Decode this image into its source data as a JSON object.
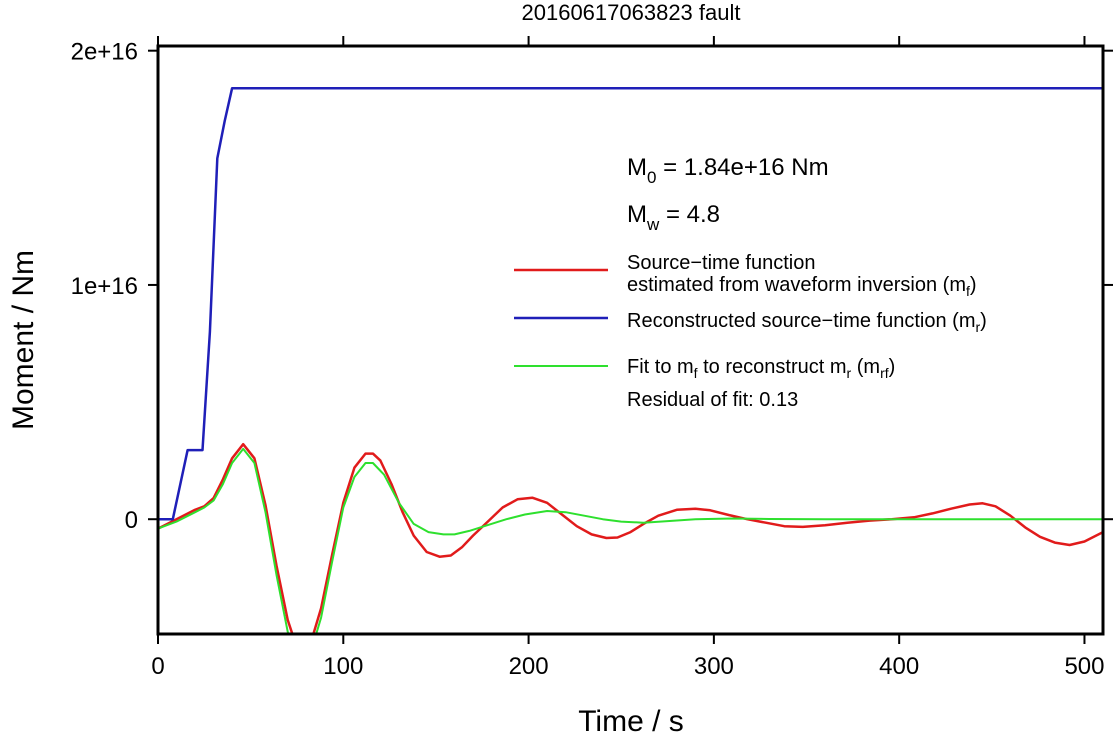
{
  "chart_data": {
    "type": "line",
    "title": "20160617063823 fault",
    "xlabel": "Time / s",
    "ylabel": "Moment / Nm",
    "xlim": [
      0,
      510
    ],
    "ylim": [
      -4900000000000000.0,
      2.02e+16
    ],
    "x_ticks": [
      0,
      100,
      200,
      300,
      400,
      500
    ],
    "x_tick_labels": [
      "0",
      "100",
      "200",
      "300",
      "400",
      "500"
    ],
    "y_ticks": [
      0,
      1e+16,
      2e+16
    ],
    "y_tick_labels": [
      "0",
      "1e+16",
      "2e+16"
    ],
    "grid": false,
    "legend_position": "right-center",
    "annotations": {
      "m0": {
        "sym": "M",
        "sub": "0",
        "rest": " = 1.84e+16 Nm"
      },
      "mw": {
        "sym": "M",
        "sub": "w",
        "rest": " = 4.8"
      },
      "residual": "Residual of fit: 0.13"
    },
    "legend": [
      {
        "series": "mf",
        "line1": "Source−time function",
        "line2_pre": "estimated from waveform inversion (m",
        "line2_sub": "f",
        "line2_post": ")"
      },
      {
        "series": "mr",
        "line1_pre": "Reconstructed source−time function (m",
        "line1_sub": "r",
        "line1_post": ")"
      },
      {
        "series": "mrf",
        "line1_pre": "Fit to m",
        "line1_sub": "f",
        "line1_mid": " to reconstruct m",
        "line1_sub2": "r",
        "line1_mid2": " (m",
        "line1_sub3": "rf",
        "line1_post": ")"
      }
    ],
    "series": [
      {
        "key": "mf",
        "color": "#e11b1b",
        "x": [
          0,
          10,
          20,
          25,
          30,
          35,
          40,
          46,
          52,
          58,
          64,
          70,
          75,
          78,
          82,
          88,
          94,
          100,
          106,
          112,
          116,
          120,
          126,
          132,
          138,
          145,
          152,
          158,
          164,
          170,
          178,
          186,
          194,
          202,
          210,
          218,
          226,
          234,
          242,
          248,
          255,
          262,
          270,
          280,
          290,
          298,
          308,
          318,
          328,
          338,
          348,
          360,
          372,
          384,
          396,
          408,
          418,
          428,
          438,
          445,
          452,
          460,
          468,
          476,
          484,
          492,
          500,
          510
        ],
        "y": [
          -400000000000000.0,
          0,
          400000000000000.0,
          550000000000000.0,
          900000000000000.0,
          1700000000000000.0,
          2600000000000000.0,
          3200000000000000.0,
          2600000000000000.0,
          600000000000000.0,
          -2000000000000000.0,
          -4300000000000000.0,
          -5500000000000000.0,
          -5700000000000000.0,
          -5400000000000000.0,
          -3800000000000000.0,
          -1500000000000000.0,
          700000000000000.0,
          2200000000000000.0,
          2800000000000000.0,
          2800000000000000.0,
          2500000000000000.0,
          1500000000000000.0,
          300000000000000.0,
          -700000000000000.0,
          -1400000000000000.0,
          -1600000000000000.0,
          -1550000000000000.0,
          -1200000000000000.0,
          -700000000000000.0,
          -100000000000000.0,
          500000000000000.0,
          850000000000000.0,
          920000000000000.0,
          700000000000000.0,
          200000000000000.0,
          -300000000000000.0,
          -650000000000000.0,
          -800000000000000.0,
          -780000000000000.0,
          -550000000000000.0,
          -200000000000000.0,
          150000000000000.0,
          400000000000000.0,
          450000000000000.0,
          380000000000000.0,
          180000000000000.0,
          0,
          -150000000000000.0,
          -300000000000000.0,
          -330000000000000.0,
          -260000000000000.0,
          -150000000000000.0,
          -60000000000000.0,
          0,
          80000000000000.0,
          250000000000000.0,
          450000000000000.0,
          630000000000000.0,
          680000000000000.0,
          550000000000000.0,
          150000000000000.0,
          -350000000000000.0,
          -750000000000000.0,
          -1000000000000000.0,
          -1100000000000000.0,
          -950000000000000.0,
          -550000000000000.0
        ]
      },
      {
        "key": "mr",
        "color": "#1f1fb8",
        "x": [
          0,
          8,
          16,
          24,
          28,
          32,
          36,
          40,
          510
        ],
        "y": [
          0,
          0,
          2950000000000000.0,
          2950000000000000.0,
          8000000000000000.0,
          1.54e+16,
          1.7e+16,
          1.84e+16,
          1.84e+16
        ]
      },
      {
        "key": "mrf",
        "color": "#2ee02e",
        "x": [
          0,
          10,
          20,
          25,
          30,
          35,
          40,
          46,
          52,
          58,
          64,
          70,
          75,
          78,
          82,
          88,
          94,
          100,
          106,
          112,
          116,
          122,
          130,
          138,
          146,
          154,
          160,
          168,
          178,
          188,
          198,
          210,
          220,
          230,
          240,
          250,
          262,
          275,
          290,
          310,
          330,
          360,
          400,
          440,
          510
        ],
        "y": [
          -400000000000000.0,
          -100000000000000.0,
          300000000000000.0,
          500000000000000.0,
          800000000000000.0,
          1500000000000000.0,
          2400000000000000.0,
          3000000000000000.0,
          2400000000000000.0,
          300000000000000.0,
          -2400000000000000.0,
          -4800000000000000.0,
          -6000000000000000.0,
          -6200000000000000.0,
          -5800000000000000.0,
          -4200000000000000.0,
          -1800000000000000.0,
          500000000000000.0,
          1800000000000000.0,
          2400000000000000.0,
          2400000000000000.0,
          1900000000000000.0,
          700000000000000.0,
          -200000000000000.0,
          -550000000000000.0,
          -650000000000000.0,
          -650000000000000.0,
          -500000000000000.0,
          -250000000000000.0,
          0,
          200000000000000.0,
          350000000000000.0,
          300000000000000.0,
          150000000000000.0,
          0,
          -100000000000000.0,
          -150000000000000.0,
          -80000000000000.0,
          0,
          30000000000000.0,
          10000000000000.0,
          0,
          0,
          0,
          0
        ]
      }
    ]
  }
}
